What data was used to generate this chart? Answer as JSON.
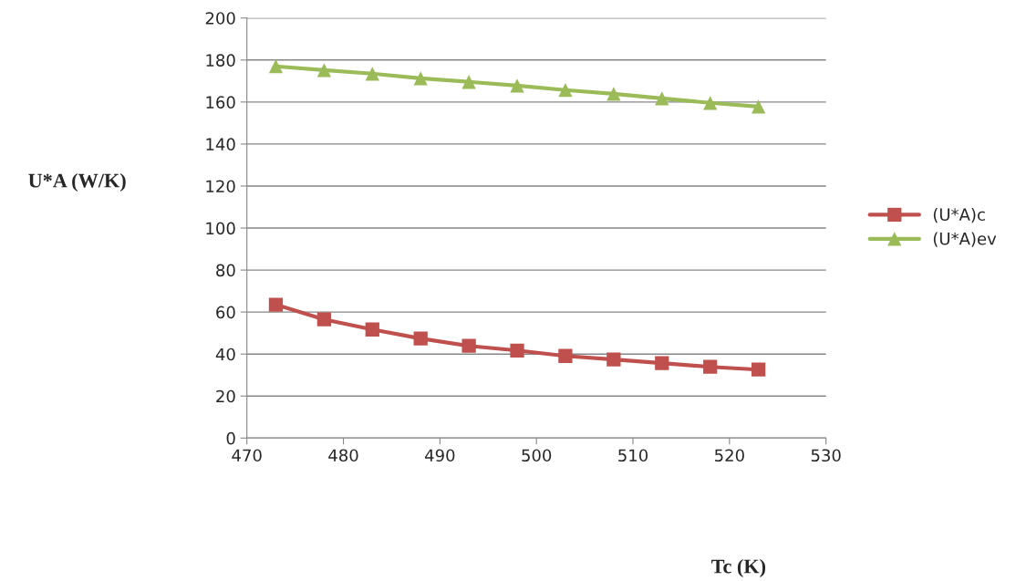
{
  "chart_data": {
    "type": "line",
    "xlabel": "Tc (K)",
    "ylabel": "U*A (W/K)",
    "x": [
      473,
      478,
      483,
      488,
      493,
      498,
      503,
      508,
      513,
      518,
      523
    ],
    "series": [
      {
        "name": "(U*A)c",
        "color": "#c0504d",
        "marker": "square",
        "values": [
          63.5,
          56.5,
          51.7,
          47.4,
          43.9,
          41.7,
          39.1,
          37.4,
          35.7,
          33.9,
          32.6
        ]
      },
      {
        "name": "(U*A)ev",
        "color": "#9bbb59",
        "marker": "triangle",
        "values": [
          177,
          175.2,
          173.5,
          171.3,
          169.6,
          167.8,
          165.7,
          163.9,
          161.7,
          159.6,
          157.8
        ]
      }
    ],
    "xlim": [
      470,
      530
    ],
    "xticks": [
      470,
      480,
      490,
      500,
      510,
      520,
      530
    ],
    "ylim": [
      0,
      200
    ],
    "yticks": [
      0,
      20,
      40,
      60,
      80,
      100,
      120,
      140,
      160,
      180,
      200
    ],
    "grid": "y",
    "legend": "right"
  }
}
